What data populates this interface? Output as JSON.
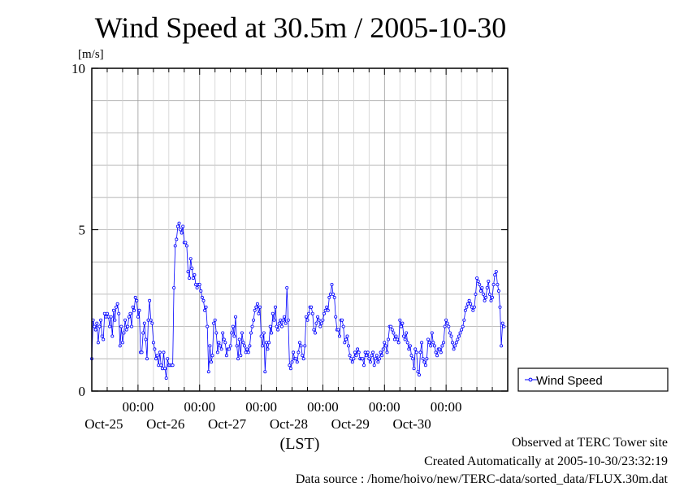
{
  "chart_data": {
    "type": "line",
    "title": "Wind Speed at 30.5m / 2005-10-30",
    "ylabel": "[m/s]",
    "xlabel": "(LST)",
    "ylim": [
      0,
      10
    ],
    "yticks": [
      0,
      5,
      10
    ],
    "xlim": [
      "2005-10-24 06:00",
      "2005-10-31 00:00"
    ],
    "x_tick_labels": [
      {
        "time": "00:00",
        "date": "Oct-25"
      },
      {
        "time": "00:00",
        "date": "Oct-26"
      },
      {
        "time": "00:00",
        "date": "Oct-27"
      },
      {
        "time": "00:00",
        "date": "Oct-28"
      },
      {
        "time": "00:00",
        "date": "Oct-29"
      },
      {
        "time": "00:00",
        "date": "Oct-30"
      }
    ],
    "grid": true,
    "legend_position": "right",
    "series": [
      {
        "name": "Wind Speed",
        "color": "#0000ff",
        "interval_hours": 0.5,
        "start": "2005-10-24 06:00",
        "values": [
          1.0,
          2.2,
          2.0,
          1.9,
          2.1,
          1.5,
          2.0,
          2.2,
          1.7,
          1.6,
          2.4,
          2.3,
          2.4,
          2.3,
          2.0,
          2.3,
          1.7,
          2.5,
          2.2,
          2.6,
          2.7,
          2.4,
          1.4,
          2.0,
          1.5,
          1.8,
          2.2,
          1.9,
          2.0,
          2.3,
          2.4,
          2.0,
          2.6,
          2.5,
          2.9,
          2.8,
          2.3,
          2.5,
          1.2,
          1.2,
          1.8,
          2.1,
          1.6,
          1.0,
          2.2,
          2.8,
          2.2,
          2.1,
          1.5,
          1.3,
          1.0,
          1.1,
          0.8,
          1.2,
          0.8,
          0.7,
          1.2,
          0.7,
          0.4,
          1.0,
          0.8,
          0.8,
          0.8,
          0.8,
          3.2,
          4.5,
          4.7,
          5.1,
          5.2,
          5.0,
          4.9,
          5.1,
          4.6,
          4.6,
          4.5,
          3.7,
          3.5,
          4.1,
          3.8,
          3.5,
          3.6,
          3.3,
          3.2,
          3.3,
          3.3,
          3.1,
          2.9,
          2.8,
          2.5,
          2.6,
          2.0,
          0.6,
          1.4,
          0.9,
          1.1,
          2.1,
          2.2,
          1.8,
          1.2,
          1.5,
          1.4,
          1.3,
          1.8,
          1.6,
          1.5,
          1.1,
          1.3,
          1.3,
          1.4,
          1.8,
          2.0,
          1.7,
          2.3,
          1.4,
          1.0,
          1.6,
          1.1,
          1.8,
          1.5,
          1.4,
          1.2,
          1.3,
          1.2,
          1.4,
          1.8,
          2.0,
          2.2,
          2.5,
          2.6,
          2.7,
          2.4,
          2.6,
          1.7,
          1.4,
          1.8,
          0.6,
          1.5,
          1.3,
          1.5,
          2.0,
          1.8,
          2.4,
          2.2,
          2.6,
          2.0,
          1.9,
          2.1,
          2.2,
          2.0,
          2.2,
          2.3,
          2.1,
          3.2,
          2.2,
          0.8,
          0.7,
          0.9,
          1.2,
          1.0,
          1.0,
          0.9,
          1.2,
          1.5,
          1.4,
          1.1,
          1.0,
          1.4,
          2.3,
          2.2,
          2.4,
          2.6,
          2.6,
          2.4,
          1.9,
          1.8,
          2.1,
          2.3,
          2.2,
          2.0,
          2.1,
          2.2,
          2.4,
          2.5,
          2.6,
          2.5,
          2.9,
          3.0,
          3.3,
          3.0,
          2.9,
          2.3,
          1.9,
          1.9,
          1.7,
          2.2,
          2.2,
          2.0,
          1.5,
          1.6,
          1.7,
          1.4,
          1.1,
          1.0,
          0.9,
          1.0,
          1.2,
          1.1,
          1.3,
          1.2,
          1.0,
          1.0,
          1.0,
          0.8,
          1.2,
          1.1,
          1.2,
          1.0,
          0.9,
          1.1,
          1.2,
          0.8,
          1.0,
          1.1,
          0.9,
          1.0,
          1.2,
          1.1,
          1.3,
          1.5,
          1.4,
          1.2,
          1.6,
          2.0,
          2.0,
          1.9,
          1.8,
          1.6,
          1.7,
          1.6,
          1.5,
          2.2,
          2.0,
          2.1,
          1.7,
          1.6,
          1.8,
          1.5,
          1.3,
          1.4,
          1.1,
          1.0,
          0.7,
          1.3,
          1.2,
          0.6,
          0.5,
          1.2,
          1.5,
          1.0,
          0.9,
          0.8,
          1.0,
          1.6,
          1.5,
          1.4,
          1.8,
          1.5,
          1.4,
          1.2,
          1.1,
          1.3,
          1.3,
          1.2,
          1.4,
          1.5,
          2.0,
          2.2,
          2.1,
          2.0,
          1.8,
          1.7,
          1.5,
          1.3,
          1.4,
          1.5,
          1.6,
          1.7,
          1.8,
          1.9,
          2.0,
          2.2,
          2.5,
          2.6,
          2.7,
          2.8,
          2.7,
          2.6,
          2.5,
          2.6,
          3.0,
          3.5,
          3.4,
          3.3,
          3.1,
          3.2,
          3.0,
          2.8,
          2.9,
          3.2,
          3.4,
          3.0,
          2.8,
          2.9,
          3.3,
          3.6,
          3.7,
          3.3,
          3.1,
          2.6,
          1.4,
          2.1,
          2.0
        ]
      }
    ]
  },
  "footer": {
    "line1": "Observed at TERC Tower site",
    "line2": "Created Automatically at 2005-10-30/23:32:19",
    "line3": "Data source : /home/hoivo/new/TERC-data/sorted_data/FLUX.30m.dat"
  }
}
